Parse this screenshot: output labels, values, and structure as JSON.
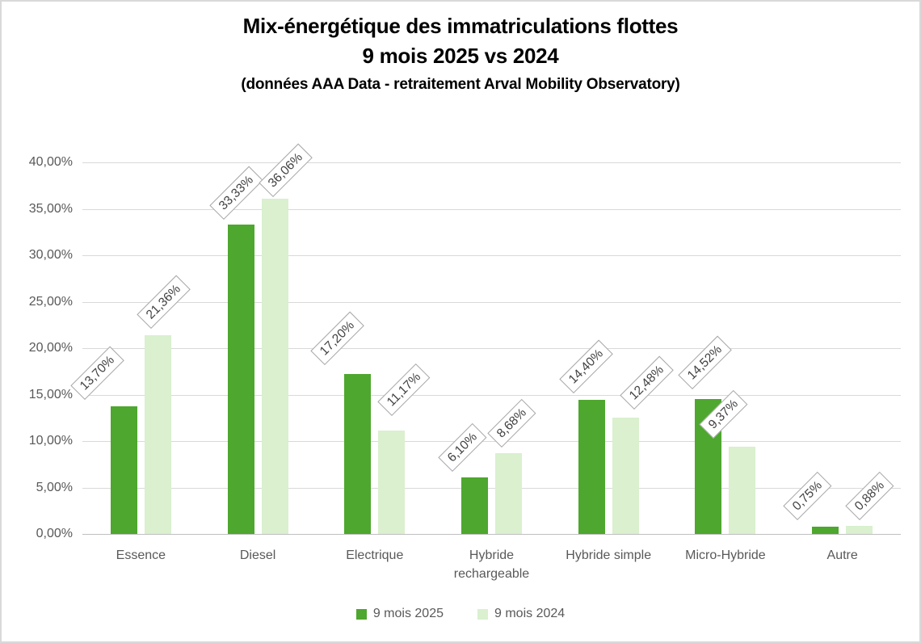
{
  "title": {
    "line1": "Mix-énergétique des immatriculations flottes",
    "line2": "9 mois 2025 vs 2024",
    "subtitle": "(données AAA Data - retraitement Arval Mobility Observatory)"
  },
  "colors": {
    "series_2025": "#4EA72E",
    "series_2024": "#DAF0CF",
    "gridline": "#D9D9D9",
    "axis_line": "#BFBFBF",
    "axis_text": "#595959",
    "data_label_text": "#404040",
    "data_label_border": "#A6A6A6",
    "title_text": "#000000"
  },
  "y_axis": {
    "tick_labels": [
      "0,00%",
      "5,00%",
      "10,00%",
      "15,00%",
      "20,00%",
      "25,00%",
      "30,00%",
      "35,00%",
      "40,00%"
    ]
  },
  "chart_data": {
    "type": "bar",
    "title": "Mix-énergétique des immatriculations flottes 9 mois 2025 vs 2024",
    "subtitle": "(données AAA Data - retraitement Arval Mobility Observatory)",
    "categories": [
      "Essence",
      "Diesel",
      "Electrique",
      "Hybride rechargeable",
      "Hybride simple",
      "Micro-Hybride",
      "Autre"
    ],
    "series": [
      {
        "name": "9 mois 2025",
        "color": "#4EA72E",
        "values": [
          13.7,
          33.33,
          17.2,
          6.1,
          14.4,
          14.52,
          0.75
        ],
        "labels": [
          "13,70%",
          "33,33%",
          "17,20%",
          "6,10%",
          "14,40%",
          "14,52%",
          "0,75%"
        ]
      },
      {
        "name": "9 mois 2024",
        "color": "#DAF0CF",
        "values": [
          21.36,
          36.06,
          11.17,
          8.68,
          12.48,
          9.37,
          0.88
        ],
        "labels": [
          "21,36%",
          "36,06%",
          "11,17%",
          "8,68%",
          "12,48%",
          "9,37%",
          "0,88%"
        ]
      }
    ],
    "xlabel": "",
    "ylabel": "",
    "ylim": [
      0,
      40
    ],
    "ytick_step": 5,
    "grid": true,
    "legend_position": "bottom",
    "data_labels": "rotated -45deg, boxed"
  }
}
